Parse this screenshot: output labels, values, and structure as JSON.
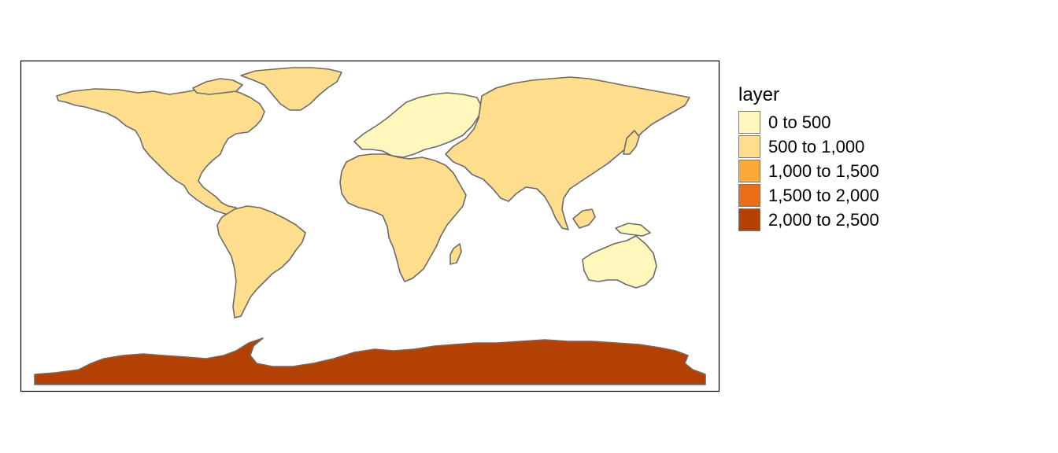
{
  "legend": {
    "title": "layer",
    "items": [
      {
        "label": "0 to 500",
        "color": "#FFF7BC"
      },
      {
        "label": "500 to 1,000",
        "color": "#FEDD8C"
      },
      {
        "label": "1,000 to 1,500",
        "color": "#FCA93A"
      },
      {
        "label": "1,500 to 2,000",
        "color": "#EA6E17"
      },
      {
        "label": "2,000 to 2,500",
        "color": "#B34104"
      }
    ]
  },
  "regions": [
    {
      "name": "North America",
      "class_index": 1
    },
    {
      "name": "Greenland",
      "class_index": 1
    },
    {
      "name": "South America",
      "class_index": 1
    },
    {
      "name": "Europe",
      "class_index": 0
    },
    {
      "name": "Africa",
      "class_index": 1
    },
    {
      "name": "Asia",
      "class_index": 1
    },
    {
      "name": "Australia",
      "class_index": 0
    },
    {
      "name": "Antarctica",
      "class_index": 4
    }
  ],
  "colors": {
    "border": "#6b6b6b",
    "frame": "#000000",
    "background": "#ffffff"
  }
}
